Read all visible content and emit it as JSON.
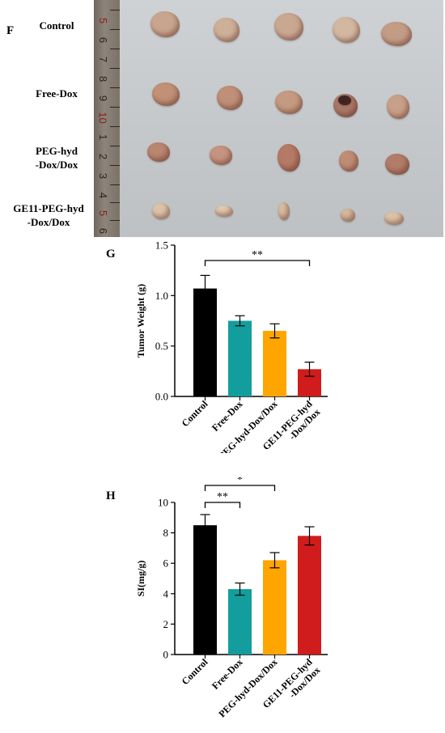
{
  "panels": {
    "f": "F",
    "g": "G",
    "h": "H"
  },
  "photo": {
    "row_labels": [
      [
        "Control"
      ],
      [
        "Free-Dox"
      ],
      [
        "PEG-hyd",
        "-Dox/Dox"
      ],
      [
        "GE11-PEG-hyd",
        "-Dox/Dox"
      ]
    ],
    "ruler_numbers": [
      "5",
      "6",
      "7",
      "8",
      "9",
      "10",
      "1",
      "2",
      "3",
      "4",
      "5",
      "6"
    ],
    "tumor_colors": {
      "control": "#c8a58e",
      "free_dox": "#c09077",
      "peg": "#b98670",
      "ge11": "#dcc3a8",
      "dark_spot": "#3a2422"
    }
  },
  "chart_data": [
    {
      "type": "bar",
      "categories": [
        "Control",
        "Free-Dox",
        "PEG-hyd-Dox/Dox",
        "GE11-PEG-hyd\n-Dox/Dox"
      ],
      "values": [
        1.07,
        0.75,
        0.65,
        0.27
      ],
      "errors": [
        0.13,
        0.05,
        0.07,
        0.07
      ],
      "colors": [
        "#000000",
        "#139d9d",
        "#ffa500",
        "#d01c1c"
      ],
      "ylabel": "Tumor Weight (g)",
      "ylim": [
        0,
        1.5
      ],
      "yticks": [
        "0.0",
        "0.5",
        "1.0",
        "1.5"
      ],
      "significance": [
        {
          "from": 0,
          "to": 3,
          "label": "**"
        }
      ]
    },
    {
      "type": "bar",
      "categories": [
        "Control",
        "Free-Dox",
        "PEG-hyd-Dox/Dox",
        "GE11-PEG-hyd\n-Dox/Dox"
      ],
      "values": [
        8.5,
        4.3,
        6.2,
        7.8
      ],
      "errors": [
        0.7,
        0.4,
        0.5,
        0.6
      ],
      "colors": [
        "#000000",
        "#139d9d",
        "#ffa500",
        "#d01c1c"
      ],
      "ylabel": "SI(mg/g)",
      "ylim": [
        0,
        10
      ],
      "yticks": [
        "0",
        "2",
        "4",
        "6",
        "8",
        "10"
      ],
      "significance": [
        {
          "from": 0,
          "to": 2,
          "label": "*"
        },
        {
          "from": 0,
          "to": 1,
          "label": "**"
        }
      ]
    }
  ]
}
